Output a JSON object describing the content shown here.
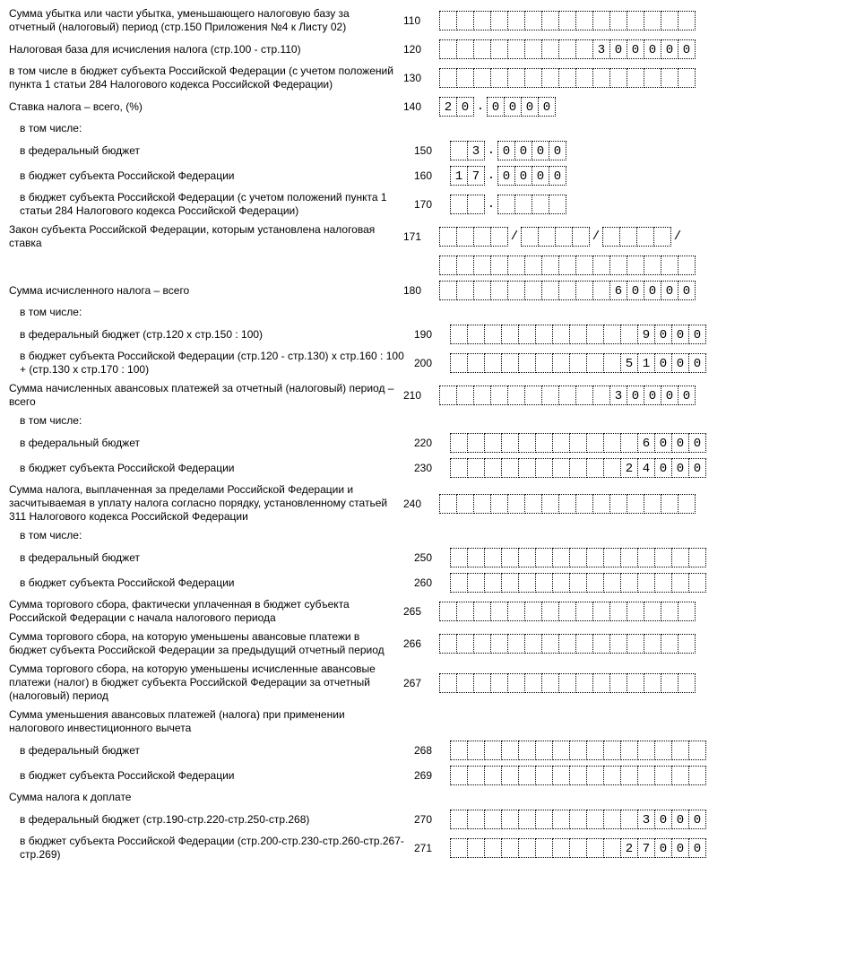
{
  "cell_count_long": 15,
  "rows": [
    {
      "label": "Сумма убытка или части убытка, уменьшающего налоговую базу за отчетный (налоговый) период (стр.150 Приложения №4 к Листу 02)",
      "code": "110",
      "type": "long",
      "value": "",
      "indent": 0
    },
    {
      "label": "Налоговая база для исчисления налога (стр.100 - стр.110)",
      "code": "120",
      "type": "long",
      "value": "300000",
      "indent": 0
    },
    {
      "label": "в том числе в бюджет субъекта Российской Федерации (с учетом положений пункта 1 статьи 284 Налогового кодекса Российской Федерации)",
      "code": "130",
      "type": "long",
      "value": "",
      "indent": 0
    },
    {
      "label": "Ставка налога – всего, (%)",
      "code": "140",
      "type": "rate",
      "int": "20",
      "frac": "0000",
      "indent": 0
    },
    {
      "label": "в том числе:",
      "code": "",
      "type": "none",
      "indent": 1
    },
    {
      "label": "в федеральный бюджет",
      "code": "150",
      "type": "rate",
      "int": "3",
      "frac": "0000",
      "indent": 1
    },
    {
      "label": "в бюджет субъекта Российской Федерации",
      "code": "160",
      "type": "rate",
      "int": "17",
      "frac": "0000",
      "indent": 1
    },
    {
      "label": "в бюджет субъекта Российской Федерации (с учетом положений пункта 1 статьи 284 Налогового кодекса Российской Федерации)",
      "code": "170",
      "type": "rate",
      "int": "",
      "frac": "",
      "indent": 1
    },
    {
      "label": "Закон субъекта Российской Федерации, которым установлена налоговая ставка",
      "code": "171",
      "type": "law",
      "indent": 0
    },
    {
      "label": "",
      "code": "",
      "type": "long",
      "value": "",
      "indent": 0,
      "extra": true
    },
    {
      "label": "Сумма исчисленного налога – всего",
      "code": "180",
      "type": "long",
      "value": "60000",
      "indent": 0
    },
    {
      "label": "в том числе:",
      "code": "",
      "type": "none",
      "indent": 1
    },
    {
      "label": "в федеральный бюджет (стр.120 х стр.150 : 100)",
      "code": "190",
      "type": "long",
      "value": "9000",
      "indent": 1
    },
    {
      "label": "в бюджет субъекта Российской Федерации\n(стр.120 - стр.130) х стр.160 : 100 + (стр.130 х стр.170 : 100)",
      "code": "200",
      "type": "long",
      "value": "51000",
      "indent": 1
    },
    {
      "label": "Сумма начисленных авансовых платежей за отчетный (налоговый) период – всего",
      "code": "210",
      "type": "long",
      "value": "30000",
      "indent": 0
    },
    {
      "label": "в том числе:",
      "code": "",
      "type": "none",
      "indent": 1
    },
    {
      "label": "в федеральный бюджет",
      "code": "220",
      "type": "long",
      "value": "6000",
      "indent": 1
    },
    {
      "label": "в бюджет субъекта Российской Федерации",
      "code": "230",
      "type": "long",
      "value": "24000",
      "indent": 1
    },
    {
      "label": "Сумма налога, выплаченная за пределами Российской Федерации и засчитываемая в уплату налога согласно порядку, установленному статьей 311 Налогового кодекса Российской Федерации",
      "code": "240",
      "type": "long",
      "value": "",
      "indent": 0
    },
    {
      "label": "в том числе:",
      "code": "",
      "type": "none",
      "indent": 1
    },
    {
      "label": "в федеральный бюджет",
      "code": "250",
      "type": "long",
      "value": "",
      "indent": 1
    },
    {
      "label": "в бюджет субъекта Российской Федерации",
      "code": "260",
      "type": "long",
      "value": "",
      "indent": 1
    },
    {
      "label": "Сумма торгового сбора, фактически уплаченная в бюджет субъекта Российской Федерации с начала налогового периода",
      "code": "265",
      "type": "long",
      "value": "",
      "indent": 0
    },
    {
      "label": "Сумма торгового сбора, на которую уменьшены авансовые платежи в бюджет субъекта Российской Федерации за предыдущий отчетный период",
      "code": "266",
      "type": "long",
      "value": "",
      "indent": 0
    },
    {
      "label": "Сумма торгового сбора, на которую уменьшены исчисленные авансовые платежи (налог) в бюджет субъекта Российской Федерации за отчетный (налоговый) период",
      "code": "267",
      "type": "long",
      "value": "",
      "indent": 0
    },
    {
      "label": "Сумма уменьшения авансовых платежей (налога) при применении налогового инвестиционного вычета",
      "code": "",
      "type": "none",
      "indent": 0
    },
    {
      "label": "в федеральный бюджет",
      "code": "268",
      "type": "long",
      "value": "",
      "indent": 1
    },
    {
      "label": "в бюджет субъекта Российской Федерации",
      "code": "269",
      "type": "long",
      "value": "",
      "indent": 1
    },
    {
      "label": "Сумма налога к доплате",
      "code": "",
      "type": "none",
      "indent": 0
    },
    {
      "label": "в федеральный бюджет (стр.190-стр.220-стр.250-стр.268)",
      "code": "270",
      "type": "long",
      "value": "3000",
      "indent": 1
    },
    {
      "label": "в бюджет субъекта Российской Федерации (стр.200-стр.230-стр.260-стр.267-стр.269)",
      "code": "271",
      "type": "long",
      "value": "27000",
      "indent": 1
    }
  ]
}
